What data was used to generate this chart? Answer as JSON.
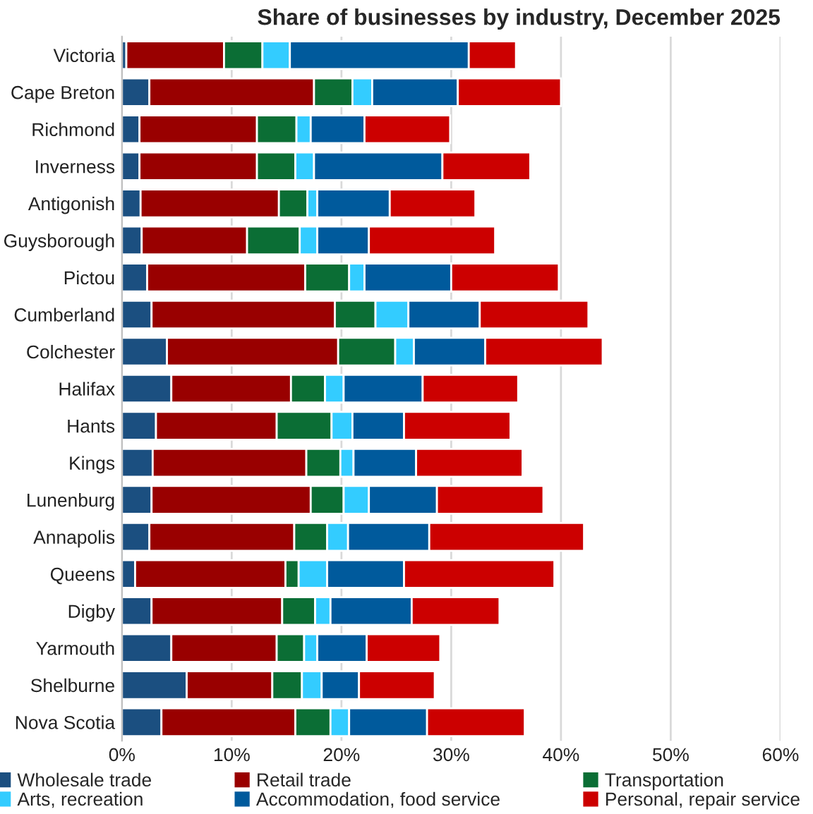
{
  "chart_data": {
    "type": "bar",
    "orientation": "horizontal",
    "stacked": true,
    "title": "Share of businesses by industry, December 2025",
    "categories": [
      "Victoria",
      "Cape Breton",
      "Richmond",
      "Inverness",
      "Antigonish",
      "Guysborough",
      "Pictou",
      "Cumberland",
      "Colchester",
      "Halifax",
      "Hants",
      "Kings",
      "Lunenburg",
      "Annapolis",
      "Queens",
      "Digby",
      "Yarmouth",
      "Shelburne",
      "Nova Scotia"
    ],
    "series": [
      {
        "name": "Wholesale trade",
        "color": "#1b4f80",
        "values": [
          0.4,
          2.5,
          1.6,
          1.6,
          1.7,
          1.8,
          2.3,
          2.7,
          4.1,
          4.5,
          3.1,
          2.8,
          2.7,
          2.5,
          1.2,
          2.7,
          4.5,
          5.9,
          3.6
        ]
      },
      {
        "name": "Retail trade",
        "color": "#990000",
        "values": [
          8.9,
          15.0,
          10.7,
          10.7,
          12.6,
          9.6,
          14.4,
          16.7,
          15.6,
          10.9,
          11.0,
          14.0,
          14.5,
          13.2,
          13.7,
          11.9,
          9.6,
          7.8,
          12.2
        ]
      },
      {
        "name": "Transportation",
        "color": "#0b6e35",
        "values": [
          3.5,
          3.5,
          3.6,
          3.5,
          2.6,
          4.8,
          4.0,
          3.7,
          5.2,
          3.1,
          5.0,
          3.1,
          3.0,
          3.0,
          1.2,
          3.0,
          2.5,
          2.7,
          3.2
        ]
      },
      {
        "name": "Arts, recreation",
        "color": "#33ccff",
        "values": [
          2.5,
          1.8,
          1.3,
          1.7,
          0.9,
          1.6,
          1.4,
          3.0,
          1.7,
          1.7,
          1.9,
          1.2,
          2.3,
          1.9,
          2.6,
          1.4,
          1.2,
          1.8,
          1.7
        ]
      },
      {
        "name": "Accommodation, food service",
        "color": "#005a9c",
        "values": [
          16.3,
          7.8,
          4.9,
          11.7,
          6.6,
          4.7,
          7.9,
          6.5,
          6.5,
          7.2,
          4.7,
          5.7,
          6.2,
          7.4,
          7.0,
          7.4,
          4.5,
          3.4,
          7.1
        ]
      },
      {
        "name": "Personal, repair service",
        "color": "#cc0000",
        "values": [
          4.3,
          9.4,
          7.8,
          8.0,
          7.8,
          11.5,
          9.8,
          9.9,
          10.7,
          8.7,
          9.7,
          9.7,
          9.7,
          14.1,
          13.7,
          8.0,
          6.7,
          6.9,
          8.9
        ]
      }
    ],
    "xlim": [
      0,
      60
    ],
    "xticks": [
      {
        "value": 0,
        "label": "0%"
      },
      {
        "value": 10,
        "label": "10%"
      },
      {
        "value": 20,
        "label": "20%"
      },
      {
        "value": 30,
        "label": "30%"
      },
      {
        "value": 40,
        "label": "40%"
      },
      {
        "value": 50,
        "label": "50%"
      },
      {
        "value": 60,
        "label": "60%"
      }
    ],
    "grid": "x",
    "legend": "bottom"
  }
}
